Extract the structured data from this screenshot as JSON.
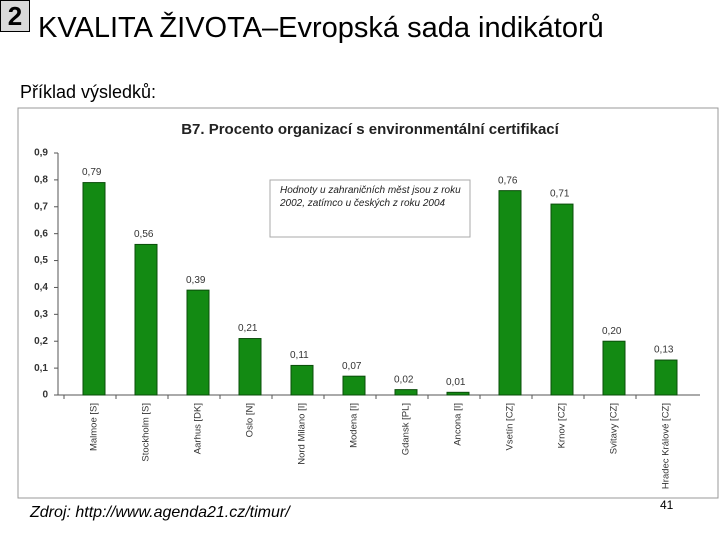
{
  "slide_number": "2",
  "title": "KVALITA ŽIVOTA–Evropská sada indikátorů",
  "subtitle": "Příklad výsledků:",
  "source": "Zdroj: http://www.agenda21.cz/timur/",
  "page_number": "41",
  "chart_data": {
    "type": "bar",
    "title": "B7. Procento organizací s environmentální certifikací",
    "annotation": "Hodnoty u zahraničních měst jsou z roku 2002, zatímco u českých z roku 2004",
    "categories": [
      "Malmoe [S]",
      "Stockholm [S]",
      "Aarhus [DK]",
      "Oslo [N]",
      "Nord Milano [I]",
      "Modena [I]",
      "Gdansk [PL]",
      "Ancona [I]",
      "Vsetín [CZ]",
      "Krnov [CZ]",
      "Svitavy [CZ]",
      "Hradec Králové [CZ]"
    ],
    "values": [
      0.79,
      0.56,
      0.39,
      0.21,
      0.11,
      0.07,
      0.02,
      0.01,
      0.76,
      0.71,
      0.2,
      0.13
    ],
    "value_labels": [
      "0,79",
      "0,56",
      "0,39",
      "0,21",
      "0,11",
      "0,07",
      "0,02",
      "0,01",
      "0,76",
      "0,71",
      "0,20",
      "0,13"
    ],
    "color": "#138a13",
    "ylim": [
      0,
      0.9
    ],
    "yticks": [
      0,
      {
        "value": 0.1,
        "label": "0,1"
      },
      {
        "value": 0.2,
        "label": "0,2"
      },
      {
        "value": 0.3,
        "label": "0,3"
      },
      {
        "value": 0.4,
        "label": "0,4"
      },
      {
        "value": 0.5,
        "label": "0,5"
      },
      {
        "value": 0.6,
        "label": "0,6"
      },
      {
        "value": 0.7,
        "label": "0,7"
      },
      {
        "value": 0.8,
        "label": "0,8"
      },
      {
        "value": 0.9,
        "label": "0,9"
      }
    ],
    "grid": false
  }
}
